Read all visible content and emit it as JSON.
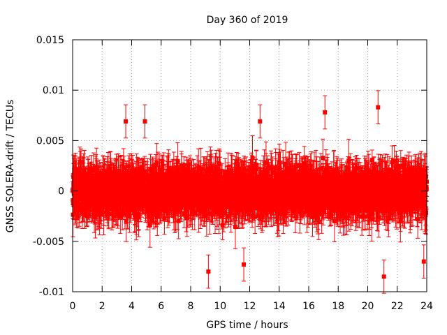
{
  "chart_data": {
    "type": "scatter",
    "title": "Day 360 of 2019",
    "xlabel": "GPS time / hours",
    "ylabel": "GNSS SOLERA-drift / TECUs",
    "xlim": [
      0,
      24
    ],
    "ylim": [
      -0.01,
      0.015
    ],
    "x_ticks": [
      0,
      2,
      4,
      6,
      8,
      10,
      12,
      14,
      16,
      18,
      20,
      22,
      24
    ],
    "x_tick_labels": [
      "0",
      "2",
      "4",
      "6",
      "8",
      "10",
      "12",
      "14",
      "16",
      "18",
      "20",
      "22",
      "24"
    ],
    "y_ticks": [
      -0.01,
      -0.005,
      0,
      0.005,
      0.01,
      0.015
    ],
    "y_tick_labels": [
      "-0.01",
      "-0.005",
      "0",
      "0.005",
      "0.01",
      "0.015"
    ],
    "grid": true,
    "grid_style": "dotted",
    "legend": "none",
    "series": [
      {
        "marker": "square",
        "color": "#ff0000",
        "error_bars": true,
        "x_range": [
          0,
          24
        ],
        "points_per_hour": 120,
        "typical_spread": 0.0025,
        "typical_error": 0.0015,
        "notable_points": [
          {
            "x": 3.6,
            "y": 0.0069
          },
          {
            "x": 4.9,
            "y": 0.0069
          },
          {
            "x": 9.2,
            "y": -0.008
          },
          {
            "x": 11.6,
            "y": -0.0073
          },
          {
            "x": 12.7,
            "y": 0.0069
          },
          {
            "x": 17.1,
            "y": 0.0078
          },
          {
            "x": 20.7,
            "y": 0.0083
          },
          {
            "x": 21.1,
            "y": -0.0085
          },
          {
            "x": 23.8,
            "y": -0.007
          },
          {
            "x": 0.2,
            "y": 0.0021
          },
          {
            "x": 0.1,
            "y": -0.0012
          },
          {
            "x": 23.9,
            "y": 0.0021
          }
        ]
      }
    ]
  }
}
